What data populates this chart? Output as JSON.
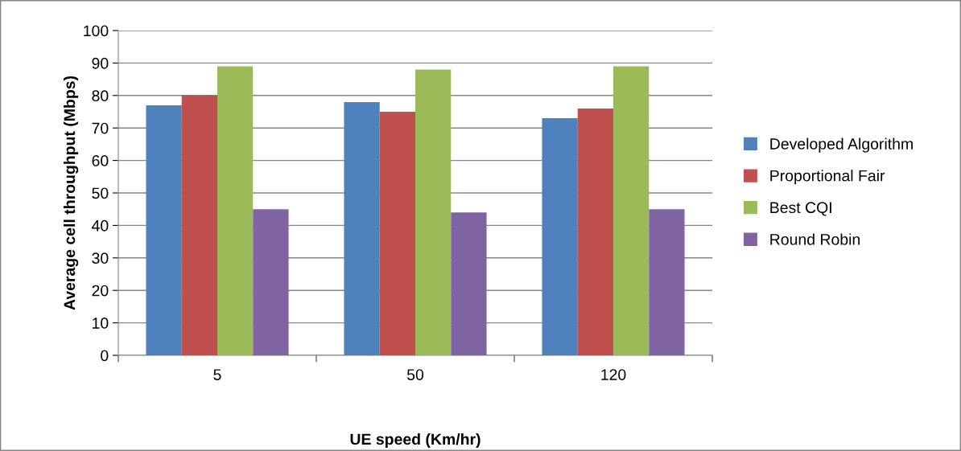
{
  "chart_data": {
    "type": "bar",
    "xlabel": "UE speed (Km/hr)",
    "ylabel": "Average cell throughput (Mbps)",
    "categories": [
      "5",
      "50",
      "120"
    ],
    "series": [
      {
        "name": "Developed Algorithm",
        "color": "#4f81bd",
        "values": [
          77,
          78,
          73
        ]
      },
      {
        "name": "Proportional Fair",
        "color": "#c0504d",
        "values": [
          80,
          75,
          76
        ]
      },
      {
        "name": "Best CQI",
        "color": "#9bbb59",
        "values": [
          89,
          88,
          89
        ]
      },
      {
        "name": "Round Robin",
        "color": "#8064a2",
        "values": [
          45,
          44,
          45
        ]
      }
    ],
    "ylim": [
      0,
      100
    ],
    "yticks": [
      0,
      10,
      20,
      30,
      40,
      50,
      60,
      70,
      80,
      90,
      100
    ],
    "grid": "y",
    "legend": "right"
  }
}
